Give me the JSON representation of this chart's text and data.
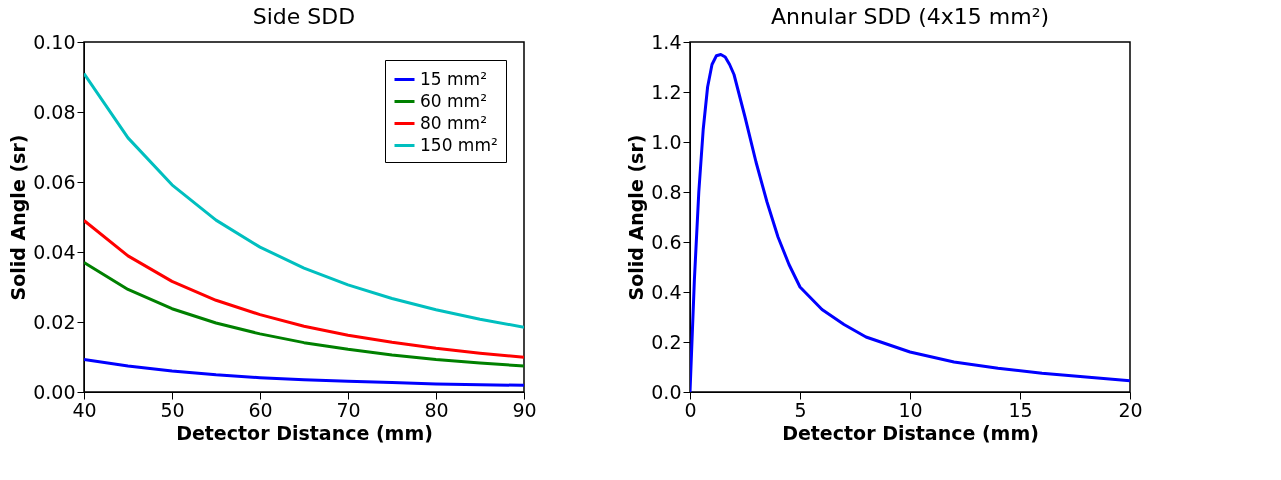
{
  "chart_data": [
    {
      "type": "line",
      "title": "Side SDD",
      "xlabel": "Detector Distance (mm)",
      "ylabel": "Solid Angle (sr)",
      "xlim": [
        40,
        90
      ],
      "xticks": [
        40,
        50,
        60,
        70,
        80,
        90
      ],
      "ylim": [
        0,
        0.1
      ],
      "yticks": [
        {
          "value": 0,
          "label": "0.00"
        },
        {
          "value": 0.02,
          "label": "0.02"
        },
        {
          "value": 0.04,
          "label": "0.04"
        },
        {
          "value": 0.06,
          "label": "0.06"
        },
        {
          "value": 0.08,
          "label": "0.08"
        },
        {
          "value": 0.1,
          "label": "0.10"
        }
      ],
      "grid": false,
      "legend": "top right",
      "marker": "none",
      "line_style": "solid",
      "x": [
        40,
        45,
        50,
        55,
        60,
        65,
        70,
        75,
        80,
        85,
        90
      ],
      "series": [
        {
          "name": "15 mm²",
          "color": "#0000ff",
          "values": [
            0.0093,
            0.0074,
            0.006,
            0.0049,
            0.0041,
            0.0035,
            0.0031,
            0.0027,
            0.0023,
            0.0021,
            0.0019
          ]
        },
        {
          "name": "60 mm²",
          "color": "#008000",
          "values": [
            0.037,
            0.0293,
            0.0238,
            0.0197,
            0.0166,
            0.0141,
            0.0122,
            0.0106,
            0.0093,
            0.0083,
            0.0074
          ]
        },
        {
          "name": "80 mm²",
          "color": "#ff0000",
          "values": [
            0.049,
            0.0389,
            0.0316,
            0.0262,
            0.0221,
            0.0188,
            0.0162,
            0.0142,
            0.0125,
            0.0111,
            0.0099
          ]
        },
        {
          "name": "150 mm²",
          "color": "#00bfbf",
          "values": [
            0.091,
            0.0726,
            0.0592,
            0.0491,
            0.0414,
            0.0354,
            0.0306,
            0.0267,
            0.0235,
            0.0208,
            0.0185
          ]
        }
      ]
    },
    {
      "type": "line",
      "title": "Annular SDD (4x15 mm²)",
      "xlabel": "Detector Distance (mm)",
      "ylabel": "Solid Angle (sr)",
      "xlim": [
        0,
        20
      ],
      "xticks": [
        0,
        5,
        10,
        15,
        20
      ],
      "ylim": [
        0,
        1.4
      ],
      "yticks": [
        {
          "value": 0,
          "label": "0.0"
        },
        {
          "value": 0.2,
          "label": "0.2"
        },
        {
          "value": 0.4,
          "label": "0.4"
        },
        {
          "value": 0.6,
          "label": "0.6"
        },
        {
          "value": 0.8,
          "label": "0.8"
        },
        {
          "value": 1.0,
          "label": "1.0"
        },
        {
          "value": 1.2,
          "label": "1.2"
        },
        {
          "value": 1.4,
          "label": "1.4"
        }
      ],
      "grid": false,
      "legend": false,
      "marker": "none",
      "line_style": "solid",
      "x": [
        0,
        0.2,
        0.4,
        0.6,
        0.8,
        1.0,
        1.2,
        1.4,
        1.6,
        1.8,
        2.0,
        2.5,
        3.0,
        3.5,
        4.0,
        4.5,
        5,
        6,
        7,
        8,
        9,
        10,
        12,
        14,
        16,
        18,
        20
      ],
      "series": [
        {
          "color": "#0000ff",
          "values": [
            0,
            0.45,
            0.8,
            1.05,
            1.22,
            1.31,
            1.345,
            1.35,
            1.34,
            1.31,
            1.27,
            1.1,
            0.92,
            0.76,
            0.62,
            0.51,
            0.42,
            0.33,
            0.27,
            0.22,
            0.19,
            0.16,
            0.12,
            0.095,
            0.075,
            0.06,
            0.045
          ]
        }
      ]
    }
  ]
}
